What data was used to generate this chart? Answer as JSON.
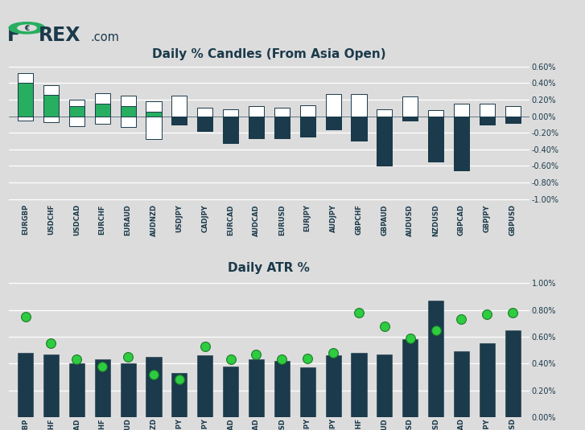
{
  "pairs": [
    "EURGBP",
    "USDCHF",
    "USDCAD",
    "EURCHF",
    "EURAUD",
    "AUDNZD",
    "USDJPY",
    "CADJPY",
    "EURCAD",
    "AUDCAD",
    "EURUSD",
    "EURJPY",
    "AUDJPY",
    "GBPCHF",
    "GBPAUD",
    "AUDUSD",
    "NZDUSD",
    "GBPCAD",
    "GBPJPY",
    "GBPUSD"
  ],
  "pct_high": [
    0.52,
    0.37,
    0.2,
    0.28,
    0.25,
    0.18,
    0.25,
    0.1,
    0.08,
    0.12,
    0.1,
    0.13,
    0.27,
    0.27,
    0.08,
    0.24,
    0.07,
    0.15,
    0.15,
    0.12
  ],
  "pct_low": [
    -0.05,
    -0.07,
    -0.12,
    -0.09,
    -0.13,
    -0.28,
    -0.1,
    -0.18,
    -0.32,
    -0.27,
    -0.27,
    -0.25,
    -0.16,
    -0.3,
    -0.6,
    -0.05,
    -0.55,
    -0.65,
    -0.1,
    -0.08
  ],
  "pct_close": [
    0.4,
    0.26,
    0.12,
    0.15,
    0.12,
    0.05,
    0.0,
    0.0,
    0.0,
    0.0,
    0.0,
    0.0,
    0.0,
    0.0,
    0.0,
    0.0,
    0.0,
    0.0,
    0.0,
    0.0
  ],
  "hl_pct": [
    0.0048,
    0.0047,
    0.004,
    0.0043,
    0.004,
    0.0045,
    0.0033,
    0.0046,
    0.0038,
    0.0043,
    0.0042,
    0.0037,
    0.0046,
    0.0048,
    0.0047,
    0.0058,
    0.0087,
    0.0049,
    0.0055,
    0.0065
  ],
  "atr10": [
    0.0075,
    0.0055,
    0.0043,
    0.0038,
    0.0045,
    0.0032,
    0.0028,
    0.0053,
    0.0043,
    0.0047,
    0.0043,
    0.0044,
    0.0048,
    0.0078,
    0.0068,
    0.0059,
    0.0065,
    0.0073,
    0.0077,
    0.0078
  ],
  "bg_color": "#dcdcdc",
  "bar_dark": "#1b3a4b",
  "bar_white": "#ffffff",
  "bar_green": "#27ae60",
  "green_dot_face": "#2ecc40",
  "green_dot_edge": "#1a7a28",
  "title1": "Daily % Candles (From Asia Open)",
  "title2": "Daily ATR %",
  "ylim1": [
    -0.0105,
    0.0065
  ],
  "ylim2": [
    0.0,
    0.0105
  ],
  "yticks1": [
    -0.01,
    -0.008,
    -0.006,
    -0.004,
    -0.002,
    0.0,
    0.002,
    0.004,
    0.006
  ],
  "ytick1_labels": [
    "-1.00%",
    "-0.80%",
    "-0.60%",
    "-0.40%",
    "-0.20%",
    "0.00%",
    "0.20%",
    "0.40%",
    "0.60%"
  ],
  "yticks2": [
    0.0,
    0.002,
    0.004,
    0.006,
    0.008,
    0.01
  ],
  "ytick2_labels": [
    "0.00%",
    "0.20%",
    "0.40%",
    "0.60%",
    "0.80%",
    "1.00%"
  ]
}
